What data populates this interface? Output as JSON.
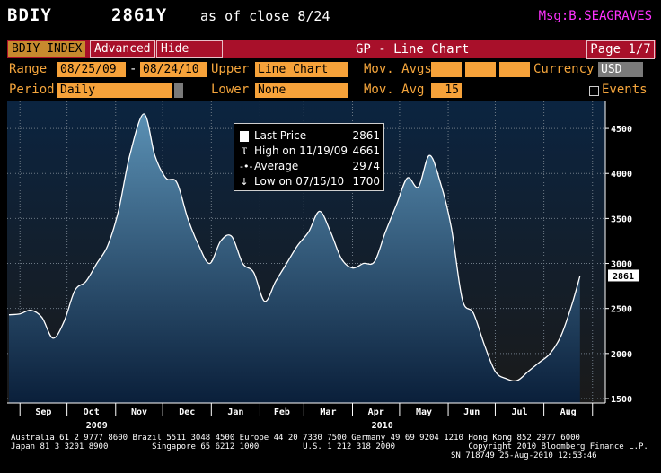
{
  "header": {
    "ticker": "BDIY",
    "price": "2861Y",
    "as_of": "as of close  8/24",
    "msg": "Msg:B.SEAGRAVES"
  },
  "toolbar": {
    "tab_index": "BDIY INDEX",
    "tab_advanced": "Advanced",
    "tab_hide": "Hide",
    "title": "GP - Line Chart",
    "page": "Page 1/7"
  },
  "controls": {
    "range_label": "Range",
    "range_start": "08/25/09",
    "range_dash": "-",
    "range_end": "08/24/10",
    "upper_label": "Upper",
    "upper_value": "Line Chart",
    "mov_avgs_label": "Mov. Avgs",
    "currency_label": "Currency",
    "currency_value": "USD",
    "period_label": "Period",
    "period_value": "Daily",
    "lower_label": "Lower",
    "lower_value": "None",
    "mov_avg_label": "Mov. Avg",
    "mov_avg_value": "15",
    "events_label": "Events"
  },
  "legend": {
    "last_price_label": "Last Price",
    "last_price_value": "2861",
    "high_label": "High on 11/19/09",
    "high_value": "4661",
    "average_label": "Average",
    "average_value": "2974",
    "low_label": "Low on 07/15/10",
    "low_value": "1700"
  },
  "chart_data": {
    "type": "area",
    "series": [
      {
        "name": "BDIY INDEX",
        "x": [
          "2009-08-25",
          "2009-09-01",
          "2009-09-08",
          "2009-09-15",
          "2009-09-22",
          "2009-09-29",
          "2009-10-06",
          "2009-10-13",
          "2009-10-20",
          "2009-10-27",
          "2009-11-03",
          "2009-11-10",
          "2009-11-19",
          "2009-11-26",
          "2009-12-03",
          "2009-12-10",
          "2009-12-17",
          "2009-12-24",
          "2009-12-31",
          "2010-01-07",
          "2010-01-14",
          "2010-01-21",
          "2010-01-28",
          "2010-02-04",
          "2010-02-11",
          "2010-02-18",
          "2010-02-25",
          "2010-03-04",
          "2010-03-11",
          "2010-03-18",
          "2010-03-25",
          "2010-04-01",
          "2010-04-08",
          "2010-04-15",
          "2010-04-22",
          "2010-04-29",
          "2010-05-06",
          "2010-05-13",
          "2010-05-20",
          "2010-05-27",
          "2010-06-03",
          "2010-06-10",
          "2010-06-17",
          "2010-06-24",
          "2010-07-01",
          "2010-07-08",
          "2010-07-15",
          "2010-07-22",
          "2010-07-29",
          "2010-08-05",
          "2010-08-12",
          "2010-08-19",
          "2010-08-24"
        ],
        "values": [
          2430,
          2440,
          2480,
          2400,
          2170,
          2350,
          2700,
          2800,
          3000,
          3200,
          3600,
          4200,
          4661,
          4200,
          3950,
          3900,
          3500,
          3200,
          3000,
          3250,
          3300,
          3000,
          2900,
          2580,
          2800,
          3000,
          3200,
          3350,
          3580,
          3350,
          3050,
          2950,
          3000,
          3020,
          3350,
          3650,
          3950,
          3850,
          4200,
          3900,
          3400,
          2600,
          2450,
          2100,
          1800,
          1720,
          1700,
          1800,
          1900,
          2000,
          2200,
          2550,
          2861
        ]
      }
    ],
    "xlabel": "",
    "ylabel": "",
    "ylim": [
      1450,
      4800
    ],
    "y_ticks": [
      1500,
      2000,
      2500,
      3000,
      3500,
      4000,
      4500
    ],
    "x_tick_labels": [
      "Sep",
      "Oct",
      "Nov",
      "Dec",
      "Jan",
      "Feb",
      "Mar",
      "Apr",
      "May",
      "Jun",
      "Jul",
      "Aug"
    ],
    "year_labels": [
      "2009",
      "2010"
    ],
    "last_value_tag": "2861",
    "grid": true,
    "legend_position": "top-center",
    "colors": {
      "line": "#ffffff",
      "fill_top": "#5a90b4",
      "fill_bottom": "#0a1f3a",
      "bg_top": "#0b2440",
      "bg_bottom": "#181818",
      "grid": "#6e7a86"
    }
  },
  "footer": {
    "line1": "Australia 61 2 9777 8600 Brazil 5511 3048 4500 Europe 44 20 7330 7500 Germany 49 69 9204 1210 Hong Kong 852 2977 6000",
    "line2": "Japan 81 3 3201 8900         Singapore 65 6212 1000         U.S. 1 212 318 2000               Copyright 2010 Bloomberg Finance L.P.",
    "line3": "SN 718749 25-Aug-2010 12:53:46"
  }
}
